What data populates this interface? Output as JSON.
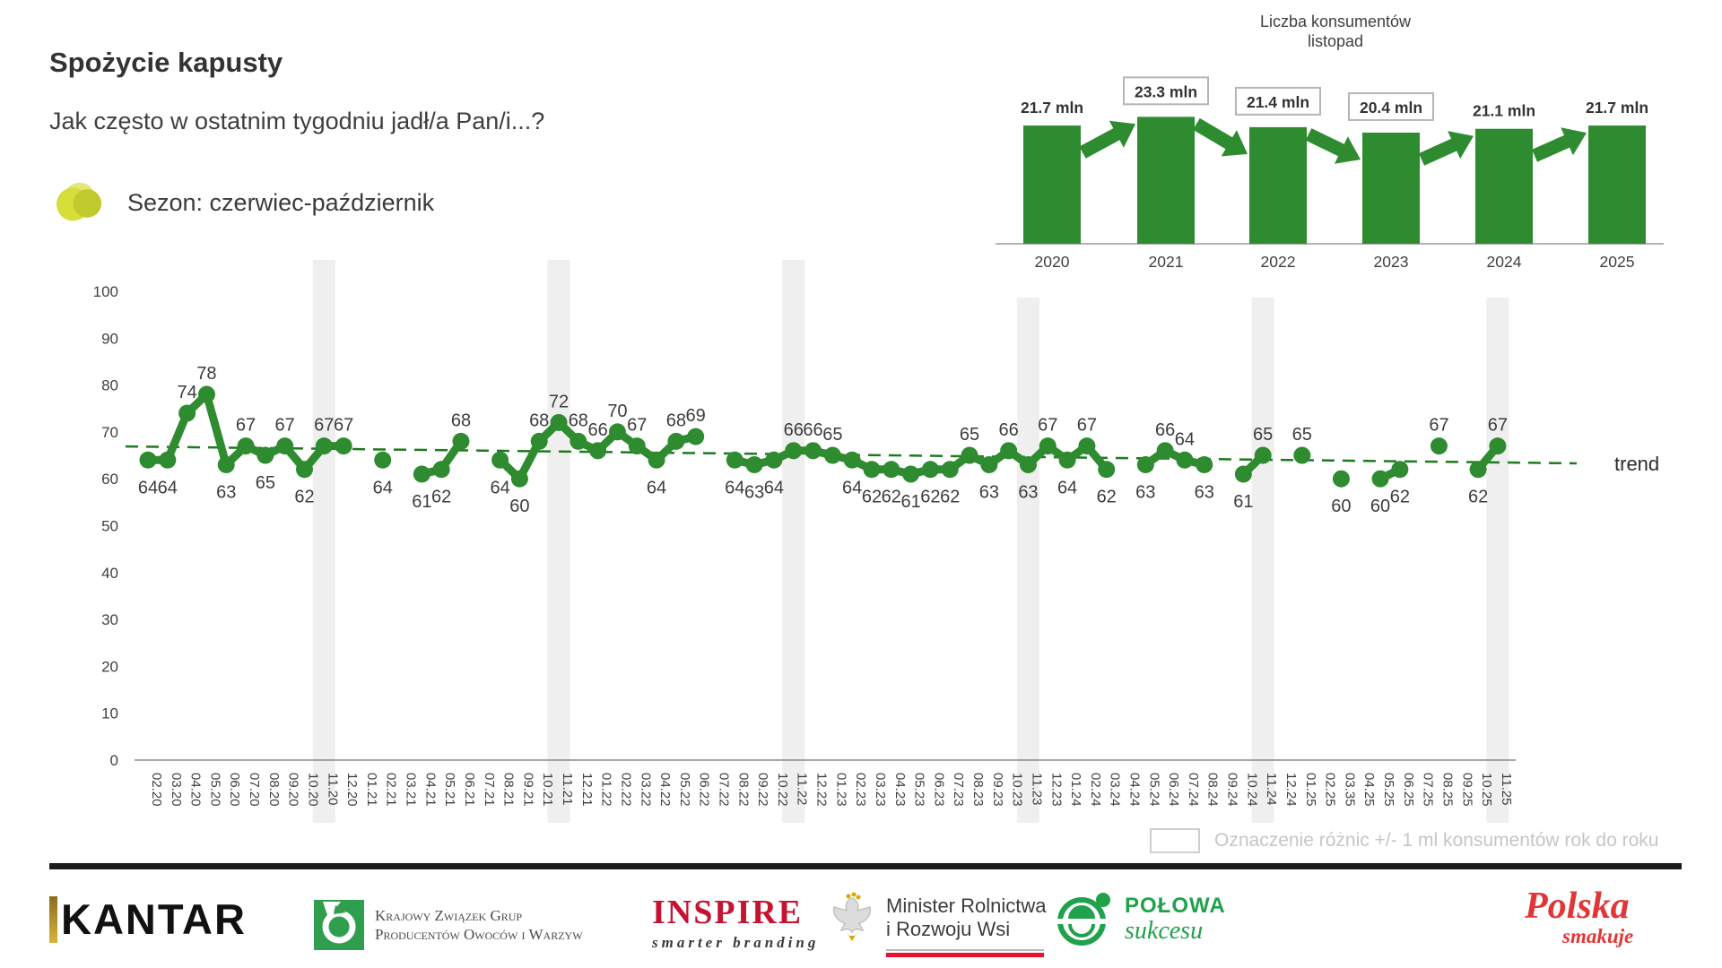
{
  "page": {
    "title": "Spożycie kapusty",
    "subtitle": "Jak często w ostatnim tygodniu jadł/a Pan/i...?",
    "season_label": "Sezon: czerwiec-październik",
    "diff_legend": "Oznaczenie różnic +/- 1 ml konsumentów rok do roku"
  },
  "colors": {
    "green": "#2e8b2f",
    "trend_green": "#1e7a1e",
    "band": "#efefef",
    "label": "#3d3d3d",
    "axis_text": "#3f3f3f",
    "axis_line": "#8c8c8c",
    "box_border": "#b5b5b5"
  },
  "chart_data": [
    {
      "type": "line",
      "title": "Spożycie kapusty",
      "ylabel": "",
      "ylim": [
        0,
        100
      ],
      "yticks": [
        0,
        10,
        20,
        30,
        40,
        50,
        60,
        70,
        80,
        90,
        100
      ],
      "grid": false,
      "trend_label": "trend",
      "trend": {
        "start_value": 66.9,
        "end_value": 63.3
      },
      "highlight_months": [
        "11.20",
        "11.21",
        "11.22",
        "11.23",
        "11.24",
        "11.25"
      ],
      "x": [
        "02.20",
        "03.20",
        "04.20",
        "05.20",
        "06.20",
        "07.20",
        "08.20",
        "09.20",
        "10.20",
        "11.20",
        "12.20",
        "01.21",
        "02.21",
        "03.21",
        "04.21",
        "05.21",
        "06.21",
        "07.21",
        "08.21",
        "09.21",
        "10.21",
        "11.21",
        "12.21",
        "01.22",
        "02.22",
        "03.22",
        "04.22",
        "05.22",
        "06.22",
        "07.22",
        "08.22",
        "09.22",
        "10.22",
        "11.22",
        "12.22",
        "01.23",
        "02.23",
        "03.23",
        "04.23",
        "05.23",
        "06.23",
        "07.23",
        "08.23",
        "09.23",
        "10.23",
        "11.23",
        "12.23",
        "01.24",
        "02.24",
        "03.24",
        "04.24",
        "05.24",
        "06.24",
        "07.24",
        "08.24",
        "09.24",
        "10.24",
        "11.24",
        "12.24",
        "01.25",
        "02.25",
        "03.35",
        "04.25",
        "05.25",
        "06.25",
        "07.25",
        "08.25",
        "09.25",
        "10.25",
        "11.25"
      ],
      "series": [
        {
          "name": "Sezon: czerwiec-październik",
          "values": [
            64,
            64,
            74,
            78,
            63,
            67,
            65,
            67,
            62,
            67,
            67,
            null,
            64,
            null,
            61,
            62,
            68,
            null,
            64,
            60,
            68,
            72,
            68,
            66,
            70,
            67,
            64,
            68,
            69,
            null,
            64,
            63,
            64,
            66,
            66,
            65,
            64,
            62,
            62,
            61,
            62,
            62,
            65,
            63,
            66,
            63,
            67,
            64,
            67,
            62,
            null,
            63,
            66,
            64,
            63,
            null,
            61,
            65,
            null,
            65,
            null,
            60,
            null,
            60,
            62,
            null,
            67,
            null,
            62,
            67
          ],
          "label_side": [
            "b",
            "b",
            "a",
            "a",
            "b",
            "a",
            "b",
            "a",
            "b",
            "a",
            "a",
            null,
            "b",
            null,
            "b",
            "b",
            "a",
            null,
            "b",
            "b",
            "a",
            "a",
            "a",
            "a",
            "a",
            "a",
            "b",
            "a",
            "a",
            null,
            "b",
            "b",
            "b",
            "a",
            "a",
            "a",
            "b",
            "b",
            "b",
            "b",
            "b",
            "b",
            "a",
            "b",
            "a",
            "b",
            "a",
            "b",
            "a",
            "b",
            null,
            "b",
            "a",
            "a",
            "b",
            null,
            "b",
            "a",
            null,
            "a",
            null,
            "b",
            null,
            "b",
            "b",
            null,
            "a",
            null,
            "b",
            "a"
          ]
        }
      ]
    },
    {
      "type": "bar",
      "title_line1": "Liczba konsumentów",
      "title_line2": "listopad",
      "categories": [
        "2020",
        "2021",
        "2022",
        "2023",
        "2024",
        "2025"
      ],
      "values": [
        21.7,
        23.3,
        21.4,
        20.4,
        21.1,
        21.7
      ],
      "labels": [
        "21.7 mln",
        "23.3 mln",
        "21.4 mln",
        "20.4 mln",
        "21.1 mln",
        "21.7 mln"
      ],
      "boxed": [
        false,
        true,
        true,
        true,
        false,
        false
      ],
      "arrows": [
        "up",
        "down",
        "down",
        "up",
        "up"
      ]
    }
  ],
  "footer": {
    "kantar": "KANTAR",
    "kzg_line1": "Krajowy Związek Grup",
    "kzg_line2": "Producentów Owoców i Warzyw",
    "inspire": "INSPIRE",
    "inspire_tagline": "smarter branding",
    "minister_line1": "Minister Rolnictwa",
    "minister_line2": "i Rozwoju Wsi",
    "polowa_line1": "POŁOWA",
    "polowa_line2": "sukcesu",
    "polska_line1": "Polska",
    "polska_line2": "smakuje"
  }
}
